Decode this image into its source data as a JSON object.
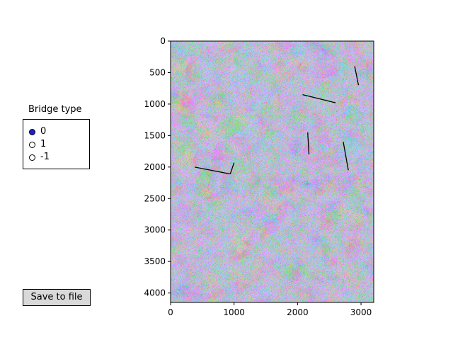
{
  "radio": {
    "title": "Bridge type",
    "options": [
      "0",
      "1",
      "-1"
    ],
    "selected_index": 0
  },
  "buttons": {
    "save_label": "Save to file"
  },
  "chart_data": {
    "type": "heatmap",
    "title": "",
    "xlabel": "",
    "ylabel": "",
    "xlim": [
      0,
      3200
    ],
    "ylim": [
      4150,
      0
    ],
    "x_ticks": [
      0,
      1000,
      2000,
      3000
    ],
    "y_ticks": [
      0,
      500,
      1000,
      1500,
      2000,
      2500,
      3000,
      3500,
      4000
    ],
    "colormap": "hsv",
    "bridge_lines": [
      {
        "x": [
          2900,
          2960
        ],
        "y": [
          400,
          700
        ]
      },
      {
        "x": [
          2080,
          2600
        ],
        "y": [
          850,
          980
        ]
      },
      {
        "x": [
          2160,
          2180
        ],
        "y": [
          1450,
          1800
        ]
      },
      {
        "x": [
          2720,
          2800
        ],
        "y": [
          1600,
          2050
        ]
      },
      {
        "x": [
          380,
          940
        ],
        "y": [
          2000,
          2110
        ]
      },
      {
        "x": [
          940,
          1000
        ],
        "y": [
          2110,
          1930
        ]
      }
    ]
  },
  "colors": {
    "radio_selected": "#1f1fd0",
    "button_bg": "#d9d9d9",
    "bridge_line": "#000000"
  }
}
